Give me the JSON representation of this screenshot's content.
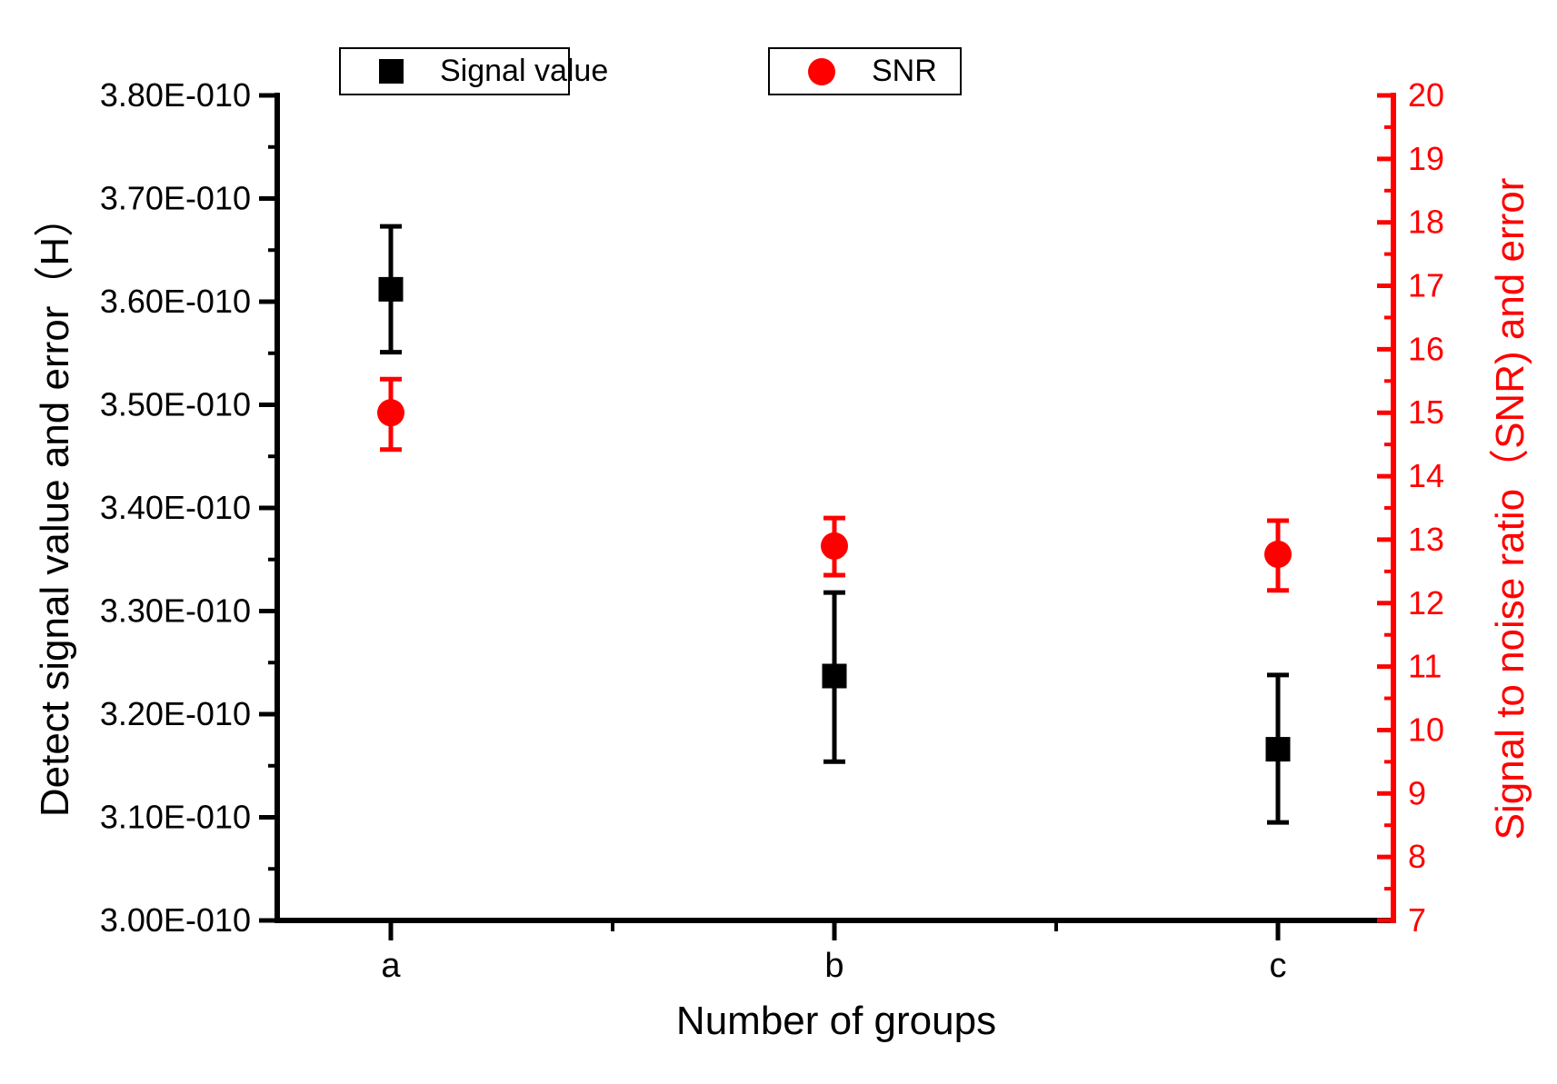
{
  "figure": {
    "x_axis_title": "Number of groups",
    "left_axis_title": "Detect signal value and error（H）",
    "right_axis_title": "Signal to noise ratio（SNR) and error"
  },
  "legend": [
    {
      "label": "Signal value",
      "marker": "square-icon",
      "color": "#000000"
    },
    {
      "label": "SNR",
      "marker": "circle-icon",
      "color": "#ff0000"
    }
  ],
  "chart_data": {
    "type": "scatter",
    "title": "",
    "categories": [
      "a",
      "b",
      "c"
    ],
    "xlabel": "Number of groups",
    "grid": false,
    "legend_position": "top",
    "left_axis": {
      "label": "Detect signal value and error（H）",
      "color": "#000000",
      "min_e10": 3.0,
      "max_e10": 3.8,
      "major_step_e10": 0.1,
      "minor_step_e10": 0.05,
      "tick_suffix": "E-010",
      "tick_labels": [
        "3.00E-010",
        "3.10E-010",
        "3.20E-010",
        "3.30E-010",
        "3.40E-010",
        "3.50E-010",
        "3.60E-010",
        "3.70E-010",
        "3.80E-010"
      ]
    },
    "right_axis": {
      "label": "Signal to noise ratio（SNR) and error",
      "color": "#ff0000",
      "min": 7,
      "max": 20,
      "major_step": 1,
      "minor_step": 0.5,
      "tick_labels": [
        "7",
        "8",
        "9",
        "10",
        "11",
        "12",
        "13",
        "14",
        "15",
        "16",
        "17",
        "18",
        "19",
        "20"
      ]
    },
    "series": [
      {
        "name": "Signal value",
        "axis": "left",
        "marker": "square",
        "color": "#000000",
        "points": [
          {
            "category": "a",
            "value_e10": 3.612,
            "error_low_e10": 3.551,
            "error_high_e10": 3.673
          },
          {
            "category": "b",
            "value_e10": 3.237,
            "error_low_e10": 3.154,
            "error_high_e10": 3.318
          },
          {
            "category": "c",
            "value_e10": 3.166,
            "error_low_e10": 3.095,
            "error_high_e10": 3.238
          }
        ]
      },
      {
        "name": "SNR",
        "axis": "right",
        "marker": "circle",
        "color": "#ff0000",
        "points": [
          {
            "category": "a",
            "value": 15.0,
            "error_low": 14.42,
            "error_high": 15.53
          },
          {
            "category": "b",
            "value": 12.9,
            "error_low": 12.44,
            "error_high": 13.34
          },
          {
            "category": "c",
            "value": 12.77,
            "error_low": 12.2,
            "error_high": 13.3
          }
        ]
      }
    ]
  }
}
